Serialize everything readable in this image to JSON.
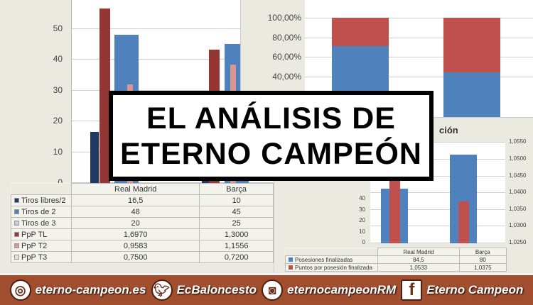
{
  "title": {
    "line1": "EL ANÁLISIS DE",
    "line2": "ETERNO CAMPEÓN"
  },
  "footer": [
    {
      "icon": "chrome-icon",
      "label": "eterno-campeon.es"
    },
    {
      "icon": "twitter-icon",
      "label": "EcBaloncesto"
    },
    {
      "icon": "instagram-icon",
      "label": "eternocampeonRM"
    },
    {
      "icon": "facebook-icon",
      "label": "Eterno Campeon"
    }
  ],
  "chart_data": [
    {
      "type": "bar",
      "categories": [
        "Real Madrid",
        "Barça"
      ],
      "yticks": [
        "0",
        "10",
        "20",
        "30",
        "40",
        "50"
      ],
      "ylim": [
        0,
        60
      ],
      "series": [
        {
          "name": "Tiros libres/2",
          "color": "#1f3864",
          "values": [
            "16,5",
            "10"
          ],
          "num": [
            16.5,
            10
          ]
        },
        {
          "name": "Tiros de 2",
          "color": "#4f81bd",
          "values": [
            "48",
            "45"
          ],
          "num": [
            48,
            45
          ]
        },
        {
          "name": "Tiros de 3",
          "color": "#b9cde5",
          "values": [
            "20",
            "25"
          ],
          "num": [
            20,
            25
          ]
        },
        {
          "name": "PpP TL",
          "color": "#943634",
          "values": [
            "1,6970",
            "1,3000"
          ],
          "num": [
            1.697,
            1.3
          ]
        },
        {
          "name": "PpP T2",
          "color": "#d99694",
          "values": [
            "0,9583",
            "1,1556"
          ],
          "num": [
            0.9583,
            1.1556
          ]
        },
        {
          "name": "PpP T3",
          "color": "#f2dcdb",
          "values": [
            "0,7500",
            "0,7200"
          ],
          "num": [
            0.75,
            0.72
          ]
        }
      ]
    },
    {
      "type": "bar",
      "stacked": "percent",
      "categories": [
        "Real Madrid",
        "Barça"
      ],
      "yticks": [
        "40,00%",
        "60,00%",
        "80,00%",
        "100,00%"
      ],
      "series": [
        {
          "color": "#4f81bd",
          "values": [
            71,
            44
          ]
        },
        {
          "color": "#c0504d",
          "values": [
            29,
            56
          ]
        }
      ]
    },
    {
      "type": "bar",
      "title": "ción",
      "categories": [
        "Real Madrid",
        "Barça"
      ],
      "yticks": [
        "0",
        "10",
        "20",
        "30",
        "40"
      ],
      "y2ticks": [
        "1,0250",
        "1,0300",
        "1,0350",
        "1,0400",
        "1,0450",
        "1,0500",
        "1,0550"
      ],
      "series": [
        {
          "name": "Posesiones finalizadas",
          "color": "#4f81bd",
          "values": [
            "84,5",
            "80"
          ],
          "num": [
            84.5,
            80
          ]
        },
        {
          "name": "Puntos por posesión finalizada",
          "color": "#c0504d",
          "values": [
            "1,0533",
            "1,0375"
          ],
          "num": [
            1.0533,
            1.0375
          ]
        }
      ]
    }
  ]
}
